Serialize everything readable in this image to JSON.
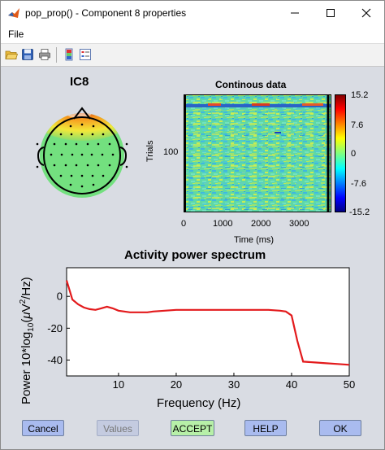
{
  "window": {
    "title": "pop_prop() - Component 8 properties"
  },
  "menu": {
    "items": [
      {
        "label": "File"
      }
    ]
  },
  "toolbar": {
    "icons": [
      "open-file-icon",
      "save-icon",
      "print-icon",
      "colorbar-icon",
      "legend-icon"
    ]
  },
  "topomap": {
    "title": "IC8"
  },
  "erpimage": {
    "title": "Continous data",
    "ylabel": "Trials",
    "ytick": "100",
    "xlabel": "Time (ms)",
    "xticks": [
      "0",
      "1000",
      "2000",
      "3000"
    ],
    "colorbar_ticks": [
      "15.2",
      "7.6",
      "0",
      "-7.6",
      "-15.2"
    ]
  },
  "chart_data": {
    "type": "line",
    "title": "Activity power spectrum",
    "xlabel": "Frequency (Hz)",
    "ylabel_parts": {
      "a": "Power 10*log",
      "sub": "10",
      "b": "(",
      "mu": "μ",
      "c": "V",
      "sup": "2",
      "d": "/Hz)"
    },
    "xlim": [
      1,
      50
    ],
    "ylim": [
      -50,
      18
    ],
    "xticks": [
      "10",
      "20",
      "30",
      "40",
      "50"
    ],
    "yticks": [
      "0",
      "-20",
      "-40"
    ],
    "color": "#e31a1c",
    "series": [
      {
        "x": [
          1,
          1.5,
          2,
          3,
          4,
          5,
          6,
          7,
          8,
          9,
          10,
          11,
          12,
          13,
          14,
          15,
          16,
          18,
          20,
          22,
          24,
          26,
          28,
          30,
          32,
          34,
          36,
          38,
          39,
          40,
          41,
          42,
          44,
          46,
          48,
          50
        ],
        "values": [
          10,
          4,
          -2,
          -5,
          -7,
          -8,
          -8.5,
          -7.5,
          -6.5,
          -7.5,
          -9,
          -9.5,
          -10,
          -10,
          -10,
          -10,
          -9.5,
          -9,
          -8.5,
          -8.5,
          -8.5,
          -8.5,
          -8.5,
          -8.5,
          -8.5,
          -8.5,
          -8.5,
          -9,
          -9.5,
          -12,
          -28,
          -41,
          -41.5,
          -42,
          -42.5,
          -43
        ]
      }
    ]
  },
  "buttons": {
    "cancel": "Cancel",
    "values": "Values",
    "accept": "ACCEPT",
    "help": "HELP",
    "ok": "OK"
  },
  "colors": {
    "accept": "#b7f0a8",
    "buttons": "#a9bbef",
    "spectrum": "#e31a1c"
  }
}
